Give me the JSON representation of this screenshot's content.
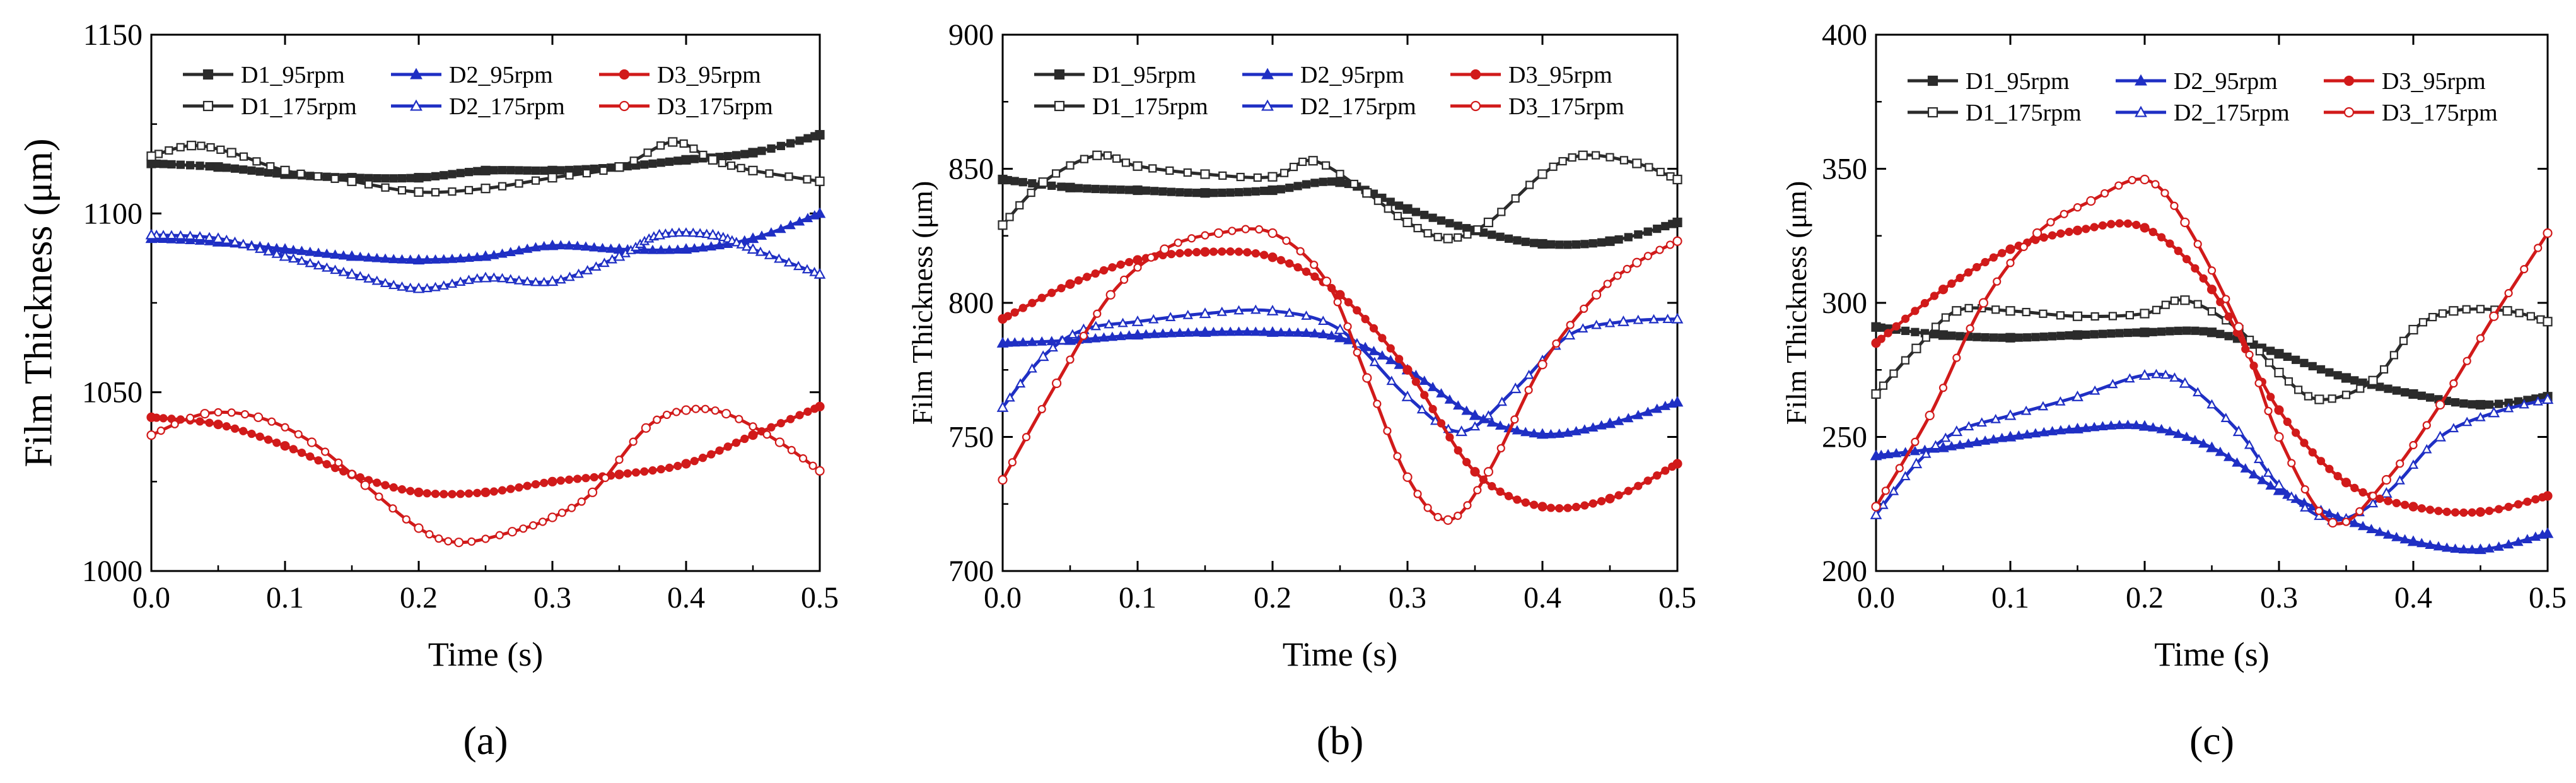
{
  "colors": {
    "D1": "#2b2b2b",
    "D2": "#1f2fc4",
    "D3": "#d11a1a",
    "axis": "#000000"
  },
  "legend_labels": [
    "D1_95rpm",
    "D2_95rpm",
    "D3_95rpm",
    "D1_175rpm",
    "D2_175rpm",
    "D3_175rpm"
  ],
  "chart_data": [
    {
      "type": "line",
      "panel_label": "(a)",
      "xlabel": "Time (s)",
      "ylabel": "Film Thickness (μm)",
      "xlim": [
        0,
        0.5
      ],
      "ylim": [
        1000,
        1150
      ],
      "xticks": [
        "0.0",
        "0.1",
        "0.2",
        "0.3",
        "0.4",
        "0.5"
      ],
      "yticks": [
        "1000",
        "1050",
        "1100",
        "1150"
      ],
      "legend": "top",
      "grid": false,
      "series": [
        {
          "name": "D1_95rpm",
          "marker": "square-filled",
          "x": [
            0,
            0.05,
            0.1,
            0.15,
            0.2,
            0.25,
            0.3,
            0.35,
            0.4,
            0.45,
            0.5
          ],
          "y": [
            1114,
            1113,
            1111,
            1110,
            1110,
            1112,
            1112,
            1113,
            1115,
            1117,
            1122
          ]
        },
        {
          "name": "D1_175rpm",
          "marker": "square-open",
          "x": [
            0,
            0.03,
            0.06,
            0.1,
            0.15,
            0.2,
            0.25,
            0.3,
            0.35,
            0.39,
            0.42,
            0.45,
            0.5
          ],
          "y": [
            1116,
            1119,
            1117,
            1112,
            1109,
            1106,
            1107,
            1110,
            1113,
            1120,
            1115,
            1112,
            1109
          ]
        },
        {
          "name": "D2_95rpm",
          "marker": "triangle-filled",
          "x": [
            0,
            0.05,
            0.1,
            0.15,
            0.2,
            0.25,
            0.3,
            0.35,
            0.4,
            0.45,
            0.5
          ],
          "y": [
            1093,
            1092,
            1090,
            1088,
            1087,
            1088,
            1091,
            1090,
            1090,
            1093,
            1100
          ]
        },
        {
          "name": "D2_175rpm",
          "marker": "triangle-open",
          "x": [
            0,
            0.05,
            0.1,
            0.15,
            0.2,
            0.25,
            0.3,
            0.35,
            0.38,
            0.42,
            0.45,
            0.5
          ],
          "y": [
            1094,
            1093,
            1088,
            1083,
            1079,
            1082,
            1081,
            1088,
            1094,
            1094,
            1090,
            1083
          ]
        },
        {
          "name": "D3_95rpm",
          "marker": "circle-filled",
          "x": [
            0,
            0.05,
            0.1,
            0.15,
            0.2,
            0.25,
            0.3,
            0.35,
            0.4,
            0.45,
            0.5
          ],
          "y": [
            1043,
            1041,
            1035,
            1027,
            1022,
            1022,
            1025,
            1027,
            1030,
            1038,
            1046
          ]
        },
        {
          "name": "D3_175rpm",
          "marker": "circle-open",
          "x": [
            0,
            0.04,
            0.08,
            0.12,
            0.16,
            0.2,
            0.23,
            0.27,
            0.3,
            0.33,
            0.37,
            0.4,
            0.43,
            0.47,
            0.5
          ],
          "y": [
            1038,
            1044,
            1043,
            1036,
            1024,
            1012,
            1008,
            1011,
            1015,
            1022,
            1040,
            1045,
            1044,
            1036,
            1028
          ]
        }
      ]
    },
    {
      "type": "line",
      "panel_label": "(b)",
      "xlabel": "Time (s)",
      "ylabel": "Film Thickness (μm)",
      "xlim": [
        0,
        0.5
      ],
      "ylim": [
        700,
        900
      ],
      "xticks": [
        "0.0",
        "0.1",
        "0.2",
        "0.3",
        "0.4",
        "0.5"
      ],
      "yticks": [
        "700",
        "750",
        "800",
        "850",
        "900"
      ],
      "legend": "top",
      "grid": false,
      "series": [
        {
          "name": "D1_95rpm",
          "marker": "square-filled",
          "x": [
            0,
            0.05,
            0.1,
            0.15,
            0.2,
            0.25,
            0.3,
            0.35,
            0.4,
            0.45,
            0.5
          ],
          "y": [
            846,
            843,
            842,
            841,
            842,
            845,
            835,
            827,
            822,
            823,
            830
          ]
        },
        {
          "name": "D1_175rpm",
          "marker": "square-open",
          "x": [
            0,
            0.03,
            0.07,
            0.1,
            0.15,
            0.2,
            0.23,
            0.27,
            0.3,
            0.33,
            0.36,
            0.4,
            0.43,
            0.47,
            0.5
          ],
          "y": [
            829,
            845,
            855,
            851,
            848,
            847,
            853,
            841,
            830,
            824,
            830,
            848,
            855,
            852,
            846
          ]
        },
        {
          "name": "D2_95rpm",
          "marker": "triangle-filled",
          "x": [
            0,
            0.05,
            0.1,
            0.15,
            0.2,
            0.25,
            0.3,
            0.35,
            0.4,
            0.45,
            0.5
          ],
          "y": [
            785,
            786,
            788,
            789,
            789,
            787,
            775,
            758,
            751,
            755,
            763
          ]
        },
        {
          "name": "D2_175rpm",
          "marker": "triangle-open",
          "x": [
            0,
            0.03,
            0.06,
            0.1,
            0.15,
            0.2,
            0.25,
            0.3,
            0.34,
            0.38,
            0.42,
            0.46,
            0.5
          ],
          "y": [
            761,
            780,
            790,
            793,
            796,
            797,
            790,
            765,
            752,
            768,
            788,
            793,
            794
          ]
        },
        {
          "name": "D3_95rpm",
          "marker": "circle-filled",
          "x": [
            0,
            0.05,
            0.1,
            0.15,
            0.2,
            0.25,
            0.3,
            0.35,
            0.4,
            0.45,
            0.5
          ],
          "y": [
            794,
            807,
            816,
            819,
            817,
            803,
            775,
            737,
            724,
            727,
            740
          ]
        },
        {
          "name": "D3_175rpm",
          "marker": "circle-open",
          "x": [
            0,
            0.04,
            0.08,
            0.12,
            0.16,
            0.2,
            0.24,
            0.27,
            0.3,
            0.33,
            0.36,
            0.4,
            0.44,
            0.47,
            0.5
          ],
          "y": [
            734,
            770,
            803,
            820,
            826,
            826,
            808,
            772,
            735,
            719,
            737,
            777,
            803,
            815,
            823
          ]
        }
      ]
    },
    {
      "type": "line",
      "panel_label": "(c)",
      "xlabel": "Time (s)",
      "ylabel": "Film Thickness (μm)",
      "xlim": [
        0,
        0.5
      ],
      "ylim": [
        200,
        400
      ],
      "xticks": [
        "0.0",
        "0.1",
        "0.2",
        "0.3",
        "0.4",
        "0.5"
      ],
      "yticks": [
        "200",
        "250",
        "300",
        "350",
        "400"
      ],
      "legend": "top",
      "grid": false,
      "series": [
        {
          "name": "D1_95rpm",
          "marker": "square-filled",
          "x": [
            0,
            0.05,
            0.1,
            0.15,
            0.2,
            0.25,
            0.3,
            0.35,
            0.4,
            0.45,
            0.5
          ],
          "y": [
            291,
            288,
            287,
            288,
            289,
            289,
            281,
            272,
            266,
            262,
            265
          ]
        },
        {
          "name": "D1_175rpm",
          "marker": "square-open",
          "x": [
            0,
            0.03,
            0.06,
            0.1,
            0.15,
            0.2,
            0.23,
            0.27,
            0.3,
            0.33,
            0.37,
            0.4,
            0.43,
            0.47,
            0.5
          ],
          "y": [
            266,
            283,
            297,
            297,
            295,
            296,
            301,
            290,
            274,
            264,
            271,
            290,
            297,
            297,
            293
          ]
        },
        {
          "name": "D2_95rpm",
          "marker": "triangle-filled",
          "x": [
            0,
            0.05,
            0.1,
            0.15,
            0.2,
            0.25,
            0.3,
            0.35,
            0.4,
            0.45,
            0.5
          ],
          "y": [
            243,
            246,
            250,
            253,
            254,
            246,
            230,
            219,
            211,
            208,
            214
          ]
        },
        {
          "name": "D2_175rpm",
          "marker": "triangle-open",
          "x": [
            0,
            0.03,
            0.06,
            0.1,
            0.15,
            0.2,
            0.23,
            0.27,
            0.3,
            0.34,
            0.38,
            0.42,
            0.46,
            0.5
          ],
          "y": [
            221,
            240,
            252,
            258,
            265,
            273,
            270,
            252,
            232,
            219,
            229,
            250,
            259,
            264
          ]
        },
        {
          "name": "D3_95rpm",
          "marker": "circle-filled",
          "x": [
            0,
            0.05,
            0.1,
            0.15,
            0.2,
            0.25,
            0.3,
            0.35,
            0.4,
            0.45,
            0.5
          ],
          "y": [
            285,
            305,
            320,
            327,
            328,
            305,
            260,
            233,
            224,
            222,
            228
          ]
        },
        {
          "name": "D3_175rpm",
          "marker": "circle-open",
          "x": [
            0,
            0.04,
            0.08,
            0.12,
            0.16,
            0.2,
            0.23,
            0.27,
            0.3,
            0.34,
            0.38,
            0.42,
            0.46,
            0.5
          ],
          "y": [
            224,
            258,
            300,
            326,
            338,
            346,
            330,
            291,
            250,
            218,
            234,
            262,
            295,
            326
          ]
        }
      ]
    }
  ]
}
